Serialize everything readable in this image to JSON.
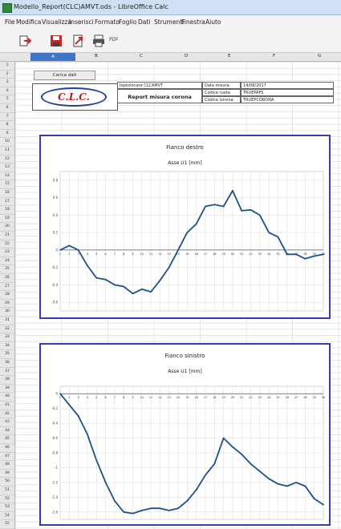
{
  "window": {
    "title": "Modello_Report(CLC)AMVT.ods - LibreOffice Calc"
  },
  "menu": [
    "File",
    "Modifica",
    "Visualizza",
    "Inserisci",
    "Formato",
    "Foglio",
    "Dati",
    "Strumenti",
    "Finestra",
    "Aiuto"
  ],
  "toolbar": {
    "pdf_label": "PDF"
  },
  "columns": [
    "A",
    "B",
    "C",
    "D",
    "E",
    "F",
    "G"
  ],
  "rows": [
    "1",
    "2",
    "3",
    "4",
    "5",
    "6",
    "7",
    "8",
    "9",
    "10",
    "11",
    "12",
    "13",
    "14",
    "15",
    "16",
    "17",
    "18",
    "19",
    "20",
    "21",
    "22",
    "23",
    "24",
    "25",
    "26",
    "27",
    "28",
    "29",
    "30",
    "31",
    "32",
    "33",
    "34",
    "35",
    "36",
    "37",
    "38",
    "39",
    "40",
    "41",
    "42",
    "43",
    "44",
    "45",
    "46",
    "47",
    "48",
    "49",
    "50",
    "51",
    "52",
    "53",
    "54",
    "55"
  ],
  "sheet": {
    "load_button": "Carica dati",
    "logo_text": "C.L.C.",
    "report_title": "Report misura corona",
    "info": {
      "inspection_label": "Ispezionare CLCAMVT",
      "date_label": "Data misura",
      "date_value": "14/06/2017",
      "code_label": "Codice ruota",
      "code_value": "TRUEPAFS",
      "description_label": "Codice corona",
      "description_value": "TRUEPCORONA"
    }
  },
  "colors": {
    "chart_border": "#3a3ab0",
    "series": "#1f4f8a",
    "grid": "#d9d9d9"
  },
  "chart_data": [
    {
      "type": "line",
      "title": "Fianco destro",
      "subtitle": "Asse U1 [mm]",
      "x": [
        1,
        2,
        3,
        4,
        5,
        6,
        7,
        8,
        9,
        10,
        11,
        12,
        13,
        14,
        15,
        16,
        17,
        18,
        19,
        20,
        21,
        22,
        23,
        24,
        25,
        26,
        27,
        28,
        29,
        30
      ],
      "series": [
        {
          "values": [
            0.0,
            0.05,
            0.0,
            -0.18,
            -0.32,
            -0.34,
            -0.4,
            -0.42,
            -0.5,
            -0.45,
            -0.48,
            -0.35,
            -0.2,
            0.0,
            0.2,
            0.3,
            0.5,
            0.52,
            0.5,
            0.68,
            0.45,
            0.46,
            0.4,
            0.2,
            0.15,
            -0.05,
            -0.05,
            -0.1,
            -0.07,
            -0.05
          ]
        }
      ],
      "ylim": [
        -0.7,
        0.9
      ],
      "yticks": [
        "0.8",
        "0.6",
        "0.4",
        "0.2",
        "0",
        "-0.2",
        "-0.4",
        "-0.6"
      ],
      "ytick_values": [
        0.8,
        0.6,
        0.4,
        0.2,
        0,
        -0.2,
        -0.4,
        -0.6
      ],
      "grid": true
    },
    {
      "type": "line",
      "title": "Fianco sinistro",
      "subtitle": "Asse U1 [mm]",
      "x": [
        1,
        2,
        3,
        4,
        5,
        6,
        7,
        8,
        9,
        10,
        11,
        12,
        13,
        14,
        15,
        16,
        17,
        18,
        19,
        20,
        21,
        22,
        23,
        24,
        25,
        26,
        27,
        28,
        29,
        30
      ],
      "series": [
        {
          "values": [
            0.0,
            -0.15,
            -0.3,
            -0.55,
            -0.9,
            -1.2,
            -1.45,
            -1.6,
            -1.62,
            -1.58,
            -1.55,
            -1.55,
            -1.58,
            -1.55,
            -1.45,
            -1.3,
            -1.1,
            -0.95,
            -0.6,
            -0.72,
            -0.82,
            -0.95,
            -1.05,
            -1.15,
            -1.22,
            -1.25,
            -1.2,
            -1.25,
            -1.42,
            -1.5
          ]
        }
      ],
      "ylim": [
        -1.7,
        0.1
      ],
      "yticks": [
        "0",
        "-0.2",
        "-0.4",
        "-0.6",
        "-0.8",
        "-1",
        "-1.2",
        "-1.4",
        "-1.6"
      ],
      "ytick_values": [
        0,
        -0.2,
        -0.4,
        -0.6,
        -0.8,
        -1,
        -1.2,
        -1.4,
        -1.6
      ],
      "grid": true
    }
  ]
}
